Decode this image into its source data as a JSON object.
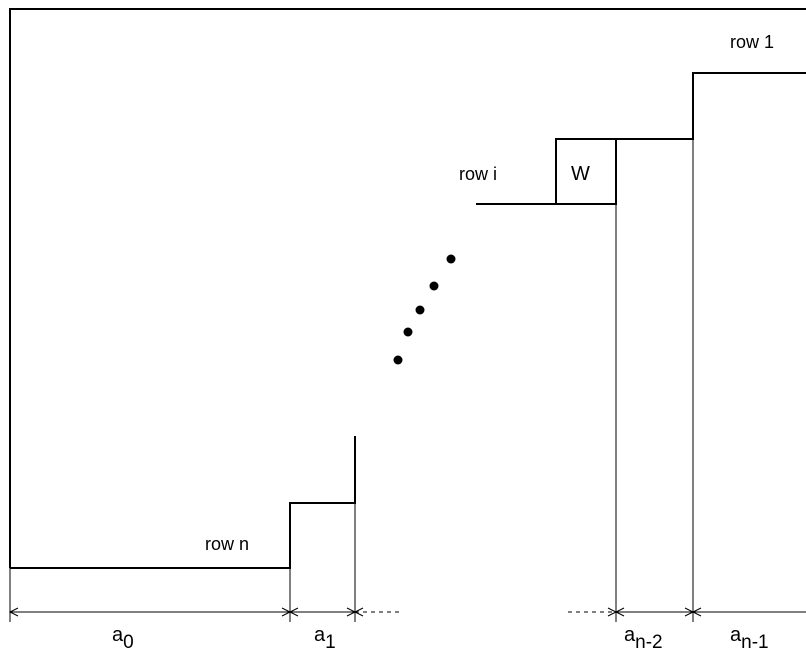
{
  "labels": {
    "row_1": "row 1",
    "row_i": "row i",
    "row_n": "row n",
    "w_box": "W"
  },
  "widths": [
    {
      "base": "a",
      "sub": "0"
    },
    {
      "base": "a",
      "sub": "1"
    },
    {
      "base": "a",
      "sub": "n-2"
    },
    {
      "base": "a",
      "sub": "n-1"
    }
  ]
}
